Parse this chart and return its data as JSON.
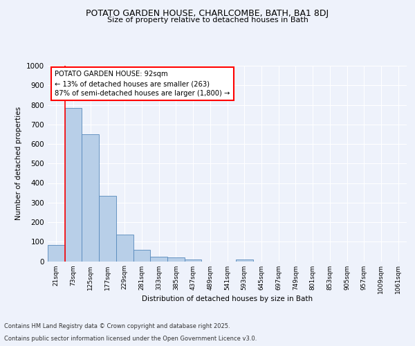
{
  "title1": "POTATO GARDEN HOUSE, CHARLCOMBE, BATH, BA1 8DJ",
  "title2": "Size of property relative to detached houses in Bath",
  "xlabel": "Distribution of detached houses by size in Bath",
  "ylabel": "Number of detached properties",
  "bar_labels": [
    "21sqm",
    "73sqm",
    "125sqm",
    "177sqm",
    "229sqm",
    "281sqm",
    "333sqm",
    "385sqm",
    "437sqm",
    "489sqm",
    "541sqm",
    "593sqm",
    "645sqm",
    "697sqm",
    "749sqm",
    "801sqm",
    "853sqm",
    "905sqm",
    "957sqm",
    "1009sqm",
    "1061sqm"
  ],
  "bar_heights": [
    83,
    783,
    648,
    335,
    135,
    60,
    22,
    18,
    10,
    0,
    0,
    10,
    0,
    0,
    0,
    0,
    0,
    0,
    0,
    0,
    0
  ],
  "bar_color": "#b8cfe8",
  "bar_edge_color": "#5588bb",
  "red_line_x": 1,
  "annotation_title": "POTATO GARDEN HOUSE: 92sqm",
  "annotation_line1": "← 13% of detached houses are smaller (263)",
  "annotation_line2": "87% of semi-detached houses are larger (1,800) →",
  "footer1": "Contains HM Land Registry data © Crown copyright and database right 2025.",
  "footer2": "Contains public sector information licensed under the Open Government Licence v3.0.",
  "ylim": [
    0,
    1000
  ],
  "yticks": [
    0,
    100,
    200,
    300,
    400,
    500,
    600,
    700,
    800,
    900,
    1000
  ],
  "bg_color": "#eef2fb",
  "plot_bg_color": "#eef2fb"
}
